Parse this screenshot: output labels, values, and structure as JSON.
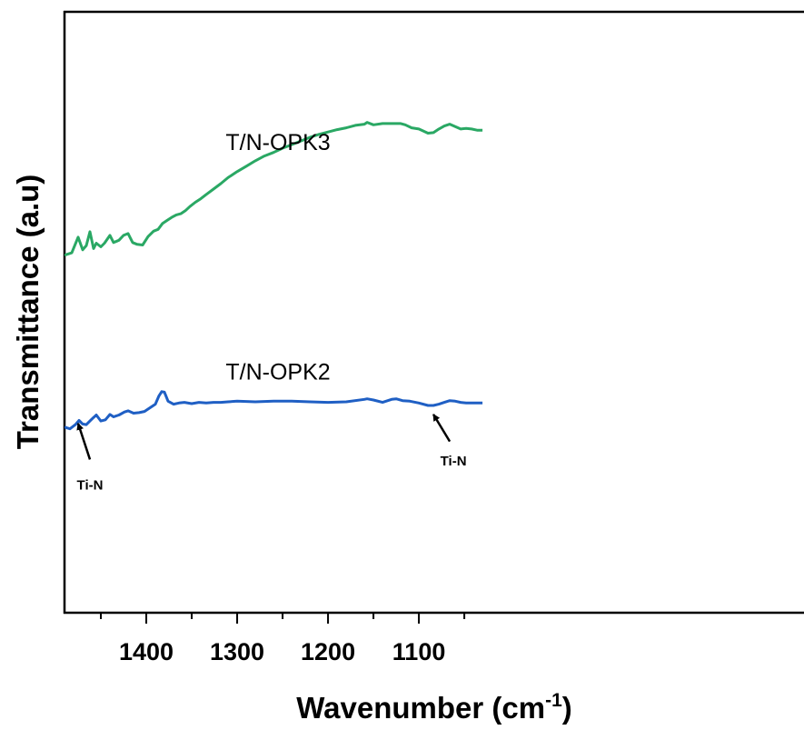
{
  "chart_data": {
    "type": "line",
    "xlabel": "Wavenumber (cm",
    "xlabel_sup": "-1",
    "xlabel_close": ")",
    "ylabel": "Transmittance (a.u)",
    "xlim": [
      1490,
      1030
    ],
    "x_reversed": true,
    "ylim": [
      0,
      100
    ],
    "y_ticks_shown": false,
    "x_ticks": [
      1400,
      1300,
      1200,
      1100
    ],
    "x_tick_labels": [
      "1400",
      "1300",
      "1200",
      "1100"
    ],
    "grid": false,
    "series": [
      {
        "name": "T/N-OPK3",
        "color": "#2aa864",
        "label_at": [
          1255,
          77
        ],
        "x": [
          1490,
          1482,
          1475,
          1470,
          1466,
          1462,
          1458,
          1455,
          1450,
          1446,
          1440,
          1436,
          1430,
          1425,
          1420,
          1415,
          1410,
          1404,
          1398,
          1392,
          1387,
          1382,
          1377,
          1372,
          1367,
          1362,
          1357,
          1352,
          1346,
          1340,
          1334,
          1326,
          1318,
          1310,
          1300,
          1290,
          1280,
          1270,
          1260,
          1250,
          1240,
          1230,
          1220,
          1210,
          1200,
          1190,
          1180,
          1170,
          1160,
          1157,
          1150,
          1140,
          1130,
          1120,
          1115,
          1108,
          1100,
          1090,
          1084,
          1078,
          1072,
          1066,
          1060,
          1054,
          1048,
          1042,
          1036,
          1030
        ],
        "y": [
          59.5,
          59.9,
          62.5,
          60.4,
          61.1,
          63.4,
          60.6,
          61.5,
          60.9,
          61.5,
          62.8,
          61.6,
          62.0,
          62.8,
          63.1,
          61.6,
          61.3,
          61.2,
          62.6,
          63.5,
          63.8,
          64.8,
          65.3,
          65.8,
          66.2,
          66.4,
          66.9,
          67.6,
          68.3,
          68.9,
          69.6,
          70.5,
          71.4,
          72.4,
          73.4,
          74.3,
          75.2,
          76.0,
          76.6,
          77.3,
          77.9,
          78.5,
          79.1,
          79.6,
          80.0,
          80.4,
          80.7,
          81.1,
          81.3,
          81.6,
          81.2,
          81.4,
          81.4,
          81.4,
          81.2,
          80.7,
          80.5,
          79.8,
          79.9,
          80.5,
          81.0,
          81.3,
          80.9,
          80.5,
          80.6,
          80.5,
          80.3,
          80.3
        ]
      },
      {
        "name": "T/N-OPK2",
        "color": "#1f5fc4",
        "label_at": [
          1255,
          38.8
        ],
        "x": [
          1490,
          1484,
          1478,
          1474,
          1470,
          1466,
          1462,
          1458,
          1455,
          1450,
          1445,
          1440,
          1436,
          1430,
          1424,
          1420,
          1414,
          1408,
          1402,
          1396,
          1390,
          1386,
          1383,
          1380,
          1376,
          1370,
          1364,
          1358,
          1350,
          1342,
          1334,
          1326,
          1318,
          1310,
          1300,
          1280,
          1260,
          1240,
          1220,
          1200,
          1180,
          1160,
          1157,
          1150,
          1140,
          1130,
          1125,
          1118,
          1110,
          1100,
          1090,
          1084,
          1078,
          1072,
          1066,
          1060,
          1054,
          1048,
          1042,
          1036,
          1030
        ],
        "y": [
          30.9,
          30.6,
          31.3,
          32.0,
          31.4,
          31.3,
          31.9,
          32.5,
          32.9,
          31.9,
          32.1,
          33.0,
          32.6,
          32.9,
          33.4,
          33.6,
          33.2,
          33.3,
          33.5,
          34.1,
          34.7,
          36.1,
          36.8,
          36.7,
          35.2,
          34.7,
          34.9,
          35.0,
          34.8,
          35.0,
          34.9,
          35.0,
          35.0,
          35.1,
          35.2,
          35.1,
          35.2,
          35.2,
          35.1,
          35.0,
          35.1,
          35.5,
          35.6,
          35.4,
          35.0,
          35.5,
          35.6,
          35.3,
          35.2,
          34.9,
          34.5,
          34.5,
          34.7,
          35.0,
          35.3,
          35.2,
          35.0,
          34.9,
          34.9,
          34.9,
          34.9
        ]
      }
    ],
    "annotations": [
      {
        "text": "Ti-N",
        "label_at": [
          1462,
          20.5
        ],
        "arrow_from": [
          1462,
          25.5
        ],
        "arrow_to": [
          1475,
          31.5
        ]
      },
      {
        "text": "Ti-N",
        "label_at": [
          1062,
          24.5
        ],
        "arrow_from": [
          1066,
          28.5
        ],
        "arrow_to": [
          1084,
          33.0
        ]
      }
    ]
  }
}
